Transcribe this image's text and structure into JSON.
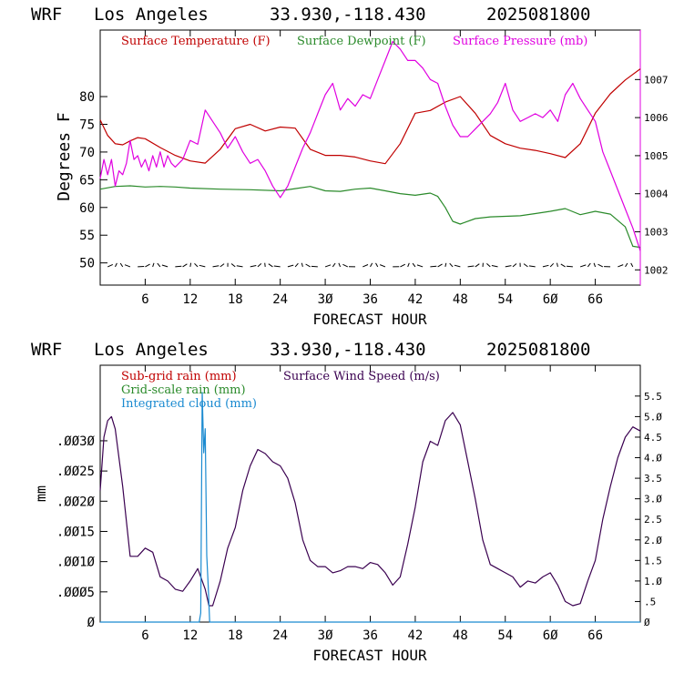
{
  "panels": [
    {
      "header": {
        "model": "WRF",
        "place": "Los Angeles",
        "coords": "33.930,-118.430",
        "run": "2025081800"
      },
      "xlabel": "FORECAST HOUR",
      "ylabel_left": "Degrees F",
      "legend": [
        {
          "text": "Surface Temperature (F)",
          "color": "#c00000"
        },
        {
          "text": "Surface Dewpoint (F)",
          "color": "#2a8a2a"
        },
        {
          "text": "Surface Pressure (mb)",
          "color": "#e000e0"
        }
      ]
    },
    {
      "header": {
        "model": "WRF",
        "place": "Los Angeles",
        "coords": "33.930,-118.430",
        "run": "2025081800"
      },
      "xlabel": "FORECAST HOUR",
      "ylabel_left": "mm",
      "legend": [
        {
          "text": "Sub-grid rain (mm)",
          "color": "#c00000"
        },
        {
          "text": "Grid-scale rain (mm)",
          "color": "#2a8a2a"
        },
        {
          "text": "Integrated cloud (mm)",
          "color": "#1a8ad0"
        },
        {
          "text": "Surface Wind Speed (m/s)",
          "color": "#3a0050"
        }
      ]
    }
  ],
  "chart_data": [
    {
      "type": "line",
      "xlim": [
        0,
        72
      ],
      "ylim": [
        46,
        92
      ],
      "y2lim": [
        1001.6,
        1008.3
      ],
      "x_ticks": [
        6,
        12,
        18,
        24,
        30,
        36,
        42,
        48,
        54,
        60,
        66
      ],
      "x_tick_labels": [
        "6",
        "12",
        "18",
        "24",
        "3Ø",
        "36",
        "42",
        "48",
        "54",
        "6Ø",
        "66"
      ],
      "y_ticks": [
        50,
        55,
        60,
        65,
        70,
        75,
        80
      ],
      "y_tick_labels": [
        "50",
        "55",
        "60",
        "65",
        "70",
        "75",
        "80"
      ],
      "y2_ticks": [
        1002,
        1003,
        1004,
        1005,
        1006,
        1007
      ],
      "y2_tick_labels": [
        "1002",
        "1003",
        "1004",
        "1005",
        "1006",
        "1007"
      ],
      "series": [
        {
          "name": "Surface Temperature (F)",
          "color": "#c00000",
          "axis": "left",
          "x": [
            0,
            1,
            2,
            3,
            4,
            5,
            6,
            8,
            10,
            12,
            14,
            16,
            18,
            20,
            22,
            24,
            26,
            28,
            30,
            32,
            34,
            36,
            38,
            40,
            42,
            44,
            46,
            48,
            50,
            52,
            54,
            56,
            58,
            60,
            62,
            64,
            66,
            68,
            70,
            72
          ],
          "y": [
            75.8,
            73,
            71.5,
            71.3,
            72,
            72.6,
            72.4,
            70.8,
            69.4,
            68.4,
            68,
            70.5,
            74.2,
            75,
            73.8,
            74.5,
            74.3,
            70.5,
            69.4,
            69.4,
            69.1,
            68.4,
            67.9,
            71.5,
            77,
            77.5,
            79,
            80,
            77,
            73,
            71.5,
            70.7,
            70.3,
            69.7,
            69,
            71.5,
            77,
            80.5,
            83,
            85
          ]
        },
        {
          "name": "Surface Dewpoint (F)",
          "color": "#2a8a2a",
          "axis": "left",
          "x": [
            0,
            2,
            4,
            6,
            8,
            10,
            12,
            16,
            20,
            24,
            26,
            28,
            30,
            32,
            34,
            36,
            38,
            40,
            42,
            44,
            45,
            46,
            47,
            48,
            50,
            52,
            54,
            56,
            58,
            60,
            62,
            64,
            66,
            68,
            70,
            71,
            72
          ],
          "y": [
            63.3,
            63.8,
            63.9,
            63.7,
            63.8,
            63.7,
            63.5,
            63.3,
            63.2,
            63,
            63.4,
            63.8,
            63,
            62.9,
            63.3,
            63.5,
            63,
            62.5,
            62.2,
            62.6,
            62,
            60,
            57.5,
            57,
            58,
            58.3,
            58.4,
            58.5,
            58.9,
            59.3,
            59.8,
            58.7,
            59.3,
            58.8,
            56.5,
            53,
            52.8
          ]
        },
        {
          "name": "Surface Pressure (mb)",
          "color": "#e000e0",
          "axis": "right",
          "x": [
            0,
            0.5,
            1,
            1.5,
            2,
            2.5,
            3,
            3.5,
            4,
            4.5,
            5,
            5.5,
            6,
            6.5,
            7,
            7.5,
            8,
            8.5,
            9,
            9.5,
            10,
            11,
            12,
            13,
            14,
            15,
            16,
            17,
            18,
            19,
            20,
            21,
            22,
            23,
            24,
            25,
            26,
            27,
            28,
            29,
            30,
            31,
            32,
            33,
            34,
            35,
            36,
            37,
            38,
            39,
            40,
            41,
            42,
            43,
            44,
            45,
            46,
            47,
            48,
            49,
            50,
            51,
            52,
            53,
            54,
            55,
            56,
            57,
            58,
            59,
            60,
            61,
            62,
            63,
            64,
            65,
            66,
            67,
            68,
            69,
            70,
            71,
            72
          ],
          "y": [
            1004.4,
            1004.9,
            1004.5,
            1004.9,
            1004.2,
            1004.6,
            1004.5,
            1004.8,
            1005.4,
            1004.9,
            1005,
            1004.7,
            1004.9,
            1004.6,
            1005,
            1004.7,
            1005.1,
            1004.7,
            1005,
            1004.8,
            1004.7,
            1004.9,
            1005.4,
            1005.3,
            1006.2,
            1005.9,
            1005.6,
            1005.2,
            1005.5,
            1005.1,
            1004.8,
            1004.9,
            1004.6,
            1004.2,
            1003.9,
            1004.2,
            1004.7,
            1005.2,
            1005.6,
            1006.1,
            1006.6,
            1006.9,
            1006.2,
            1006.5,
            1006.3,
            1006.6,
            1006.5,
            1007.0,
            1007.5,
            1008.0,
            1007.8,
            1007.5,
            1007.5,
            1007.3,
            1007.0,
            1006.9,
            1006.3,
            1005.8,
            1005.5,
            1005.5,
            1005.7,
            1005.9,
            1006.1,
            1006.4,
            1006.9,
            1006.2,
            1005.9,
            1006,
            1006.1,
            1006.0,
            1006.2,
            1005.9,
            1006.6,
            1006.9,
            1006.5,
            1006.2,
            1005.9,
            1005.1,
            1004.6,
            1004.1,
            1003.6,
            1003.1,
            1002.5
          ]
        }
      ],
      "wind_barb_strip_y": 49.3
    },
    {
      "type": "line",
      "xlim": [
        0,
        72
      ],
      "ylim": [
        0,
        0.00425
      ],
      "y2lim": [
        0,
        6.25
      ],
      "x_ticks": [
        6,
        12,
        18,
        24,
        30,
        36,
        42,
        48,
        54,
        60,
        66
      ],
      "x_tick_labels": [
        "6",
        "12",
        "18",
        "24",
        "3Ø",
        "36",
        "42",
        "48",
        "54",
        "6Ø",
        "66"
      ],
      "y_ticks": [
        0,
        0.0005,
        0.001,
        0.0015,
        0.002,
        0.0025,
        0.003
      ],
      "y_tick_labels": [
        "Ø",
        ".ØØØ5",
        ".ØØ1Ø",
        ".ØØ15",
        ".ØØ2Ø",
        ".ØØ25",
        ".ØØ3Ø"
      ],
      "y2_ticks": [
        0,
        0.5,
        1,
        1.5,
        2,
        2.5,
        3,
        3.5,
        4,
        4.5,
        5,
        5.5
      ],
      "y2_tick_labels": [
        "Ø",
        ".5",
        "1.Ø",
        "1.5",
        "2.Ø",
        "2.5",
        "3.Ø",
        "3.5",
        "4.Ø",
        "4.5",
        "5.Ø",
        "5.5"
      ],
      "series": [
        {
          "name": "Surface Wind Speed (m/s)",
          "color": "#3a0050",
          "axis": "right",
          "x": [
            0,
            0.5,
            1,
            1.5,
            2,
            3,
            4,
            5,
            6,
            7,
            8,
            9,
            10,
            11,
            12,
            13,
            14,
            14.5,
            15,
            16,
            17,
            18,
            19,
            20,
            21,
            22,
            23,
            24,
            25,
            26,
            27,
            28,
            29,
            30,
            31,
            32,
            33,
            34,
            35,
            36,
            37,
            38,
            39,
            40,
            41,
            42,
            43,
            44,
            45,
            46,
            47,
            48,
            49,
            50,
            51,
            52,
            53,
            54,
            55,
            56,
            57,
            58,
            59,
            60,
            61,
            62,
            63,
            64,
            65,
            66,
            67,
            68,
            69,
            70,
            71,
            72
          ],
          "y": [
            3.2,
            4.5,
            4.9,
            5.0,
            4.7,
            3.3,
            1.6,
            1.6,
            1.8,
            1.7,
            1.1,
            1.0,
            0.8,
            0.75,
            1.0,
            1.3,
            0.8,
            0.4,
            0.4,
            1.0,
            1.8,
            2.3,
            3.2,
            3.8,
            4.2,
            4.1,
            3.9,
            3.8,
            3.5,
            2.9,
            2.0,
            1.5,
            1.35,
            1.35,
            1.2,
            1.25,
            1.35,
            1.35,
            1.3,
            1.45,
            1.4,
            1.2,
            0.9,
            1.1,
            1.9,
            2.8,
            3.9,
            4.4,
            4.3,
            4.9,
            5.1,
            4.8,
            3.9,
            3.0,
            2.0,
            1.4,
            1.3,
            1.2,
            1.1,
            0.85,
            1.0,
            0.95,
            1.1,
            1.2,
            0.9,
            0.5,
            0.4,
            0.45,
            1.0,
            1.5,
            2.5,
            3.3,
            4.0,
            4.5,
            4.75,
            4.65
          ]
        },
        {
          "name": "Integrated cloud (mm)",
          "color": "#1a8ad0",
          "axis": "left",
          "x": [
            0,
            13.2,
            13.4,
            13.6,
            13.8,
            14.0,
            14.2,
            14.4,
            14.6,
            72
          ],
          "y": [
            0,
            0,
            0.00015,
            0.0038,
            0.0028,
            0.0032,
            0.0011,
            0.0006,
            0,
            0
          ]
        }
      ]
    }
  ]
}
